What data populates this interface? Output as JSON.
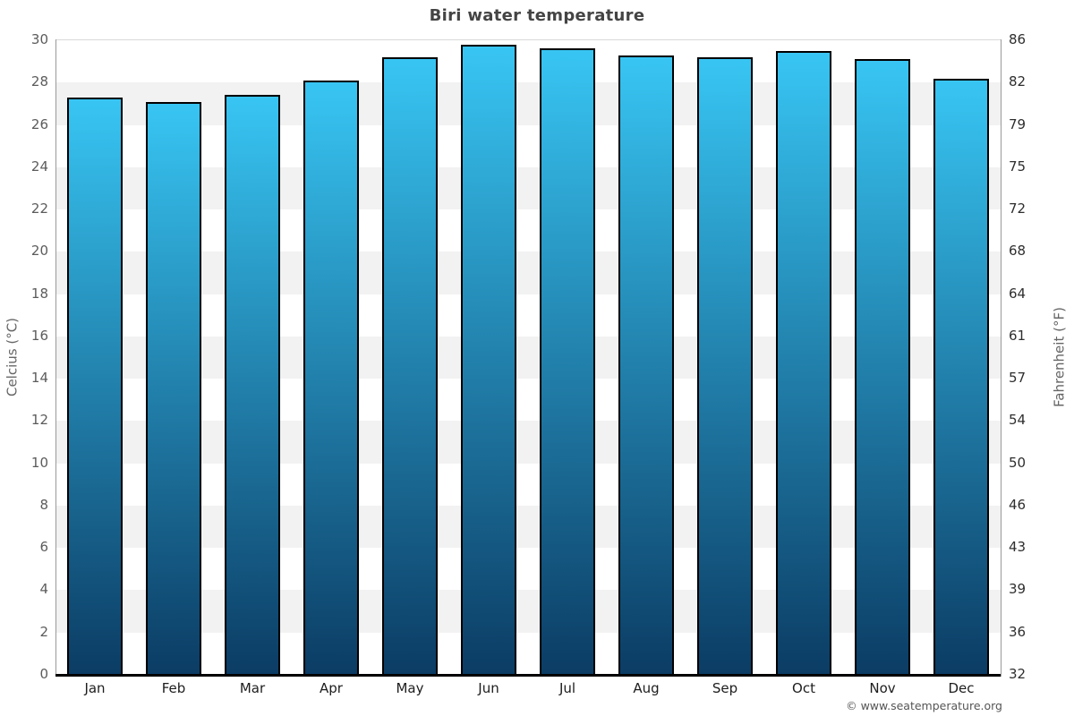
{
  "title": "Biri water temperature",
  "copyright": "© www.seatemperature.org",
  "chart_data": {
    "type": "bar",
    "title": "Biri water temperature",
    "categories": [
      "Jan",
      "Feb",
      "Mar",
      "Apr",
      "May",
      "Jun",
      "Jul",
      "Aug",
      "Sep",
      "Oct",
      "Nov",
      "Dec"
    ],
    "series": [
      {
        "name": "Water temperature",
        "values": [
          27.3,
          27.1,
          27.4,
          28.1,
          29.2,
          29.8,
          29.6,
          29.3,
          29.2,
          29.5,
          29.1,
          28.2
        ]
      }
    ],
    "xlabel": "",
    "ylabel_left": "Celcius (°C)",
    "ylabel_right": "Fahrenheit (°F)",
    "ylim": [
      0,
      30
    ],
    "yticks_celsius": [
      "30",
      "28",
      "26",
      "24",
      "22",
      "20",
      "18",
      "16",
      "14",
      "12",
      "10",
      "8",
      "6",
      "4",
      "2",
      "0"
    ],
    "yticks_fahrenheit": [
      "86",
      "82",
      "79",
      "75",
      "72",
      "68",
      "64",
      "61",
      "57",
      "54",
      "50",
      "46",
      "43",
      "39",
      "36",
      "32"
    ],
    "grid": "alternating-horizontal-bands",
    "legend": "none",
    "colors": {
      "bar_gradient_top": "#38c5f3",
      "bar_gradient_bottom": "#0b3c64",
      "bar_border": "#000000",
      "band_gray": "#f2f2f2",
      "band_white": "#ffffff",
      "axis_line": "#999999",
      "x_axis_line": "#000000",
      "title_text": "#444444"
    }
  }
}
